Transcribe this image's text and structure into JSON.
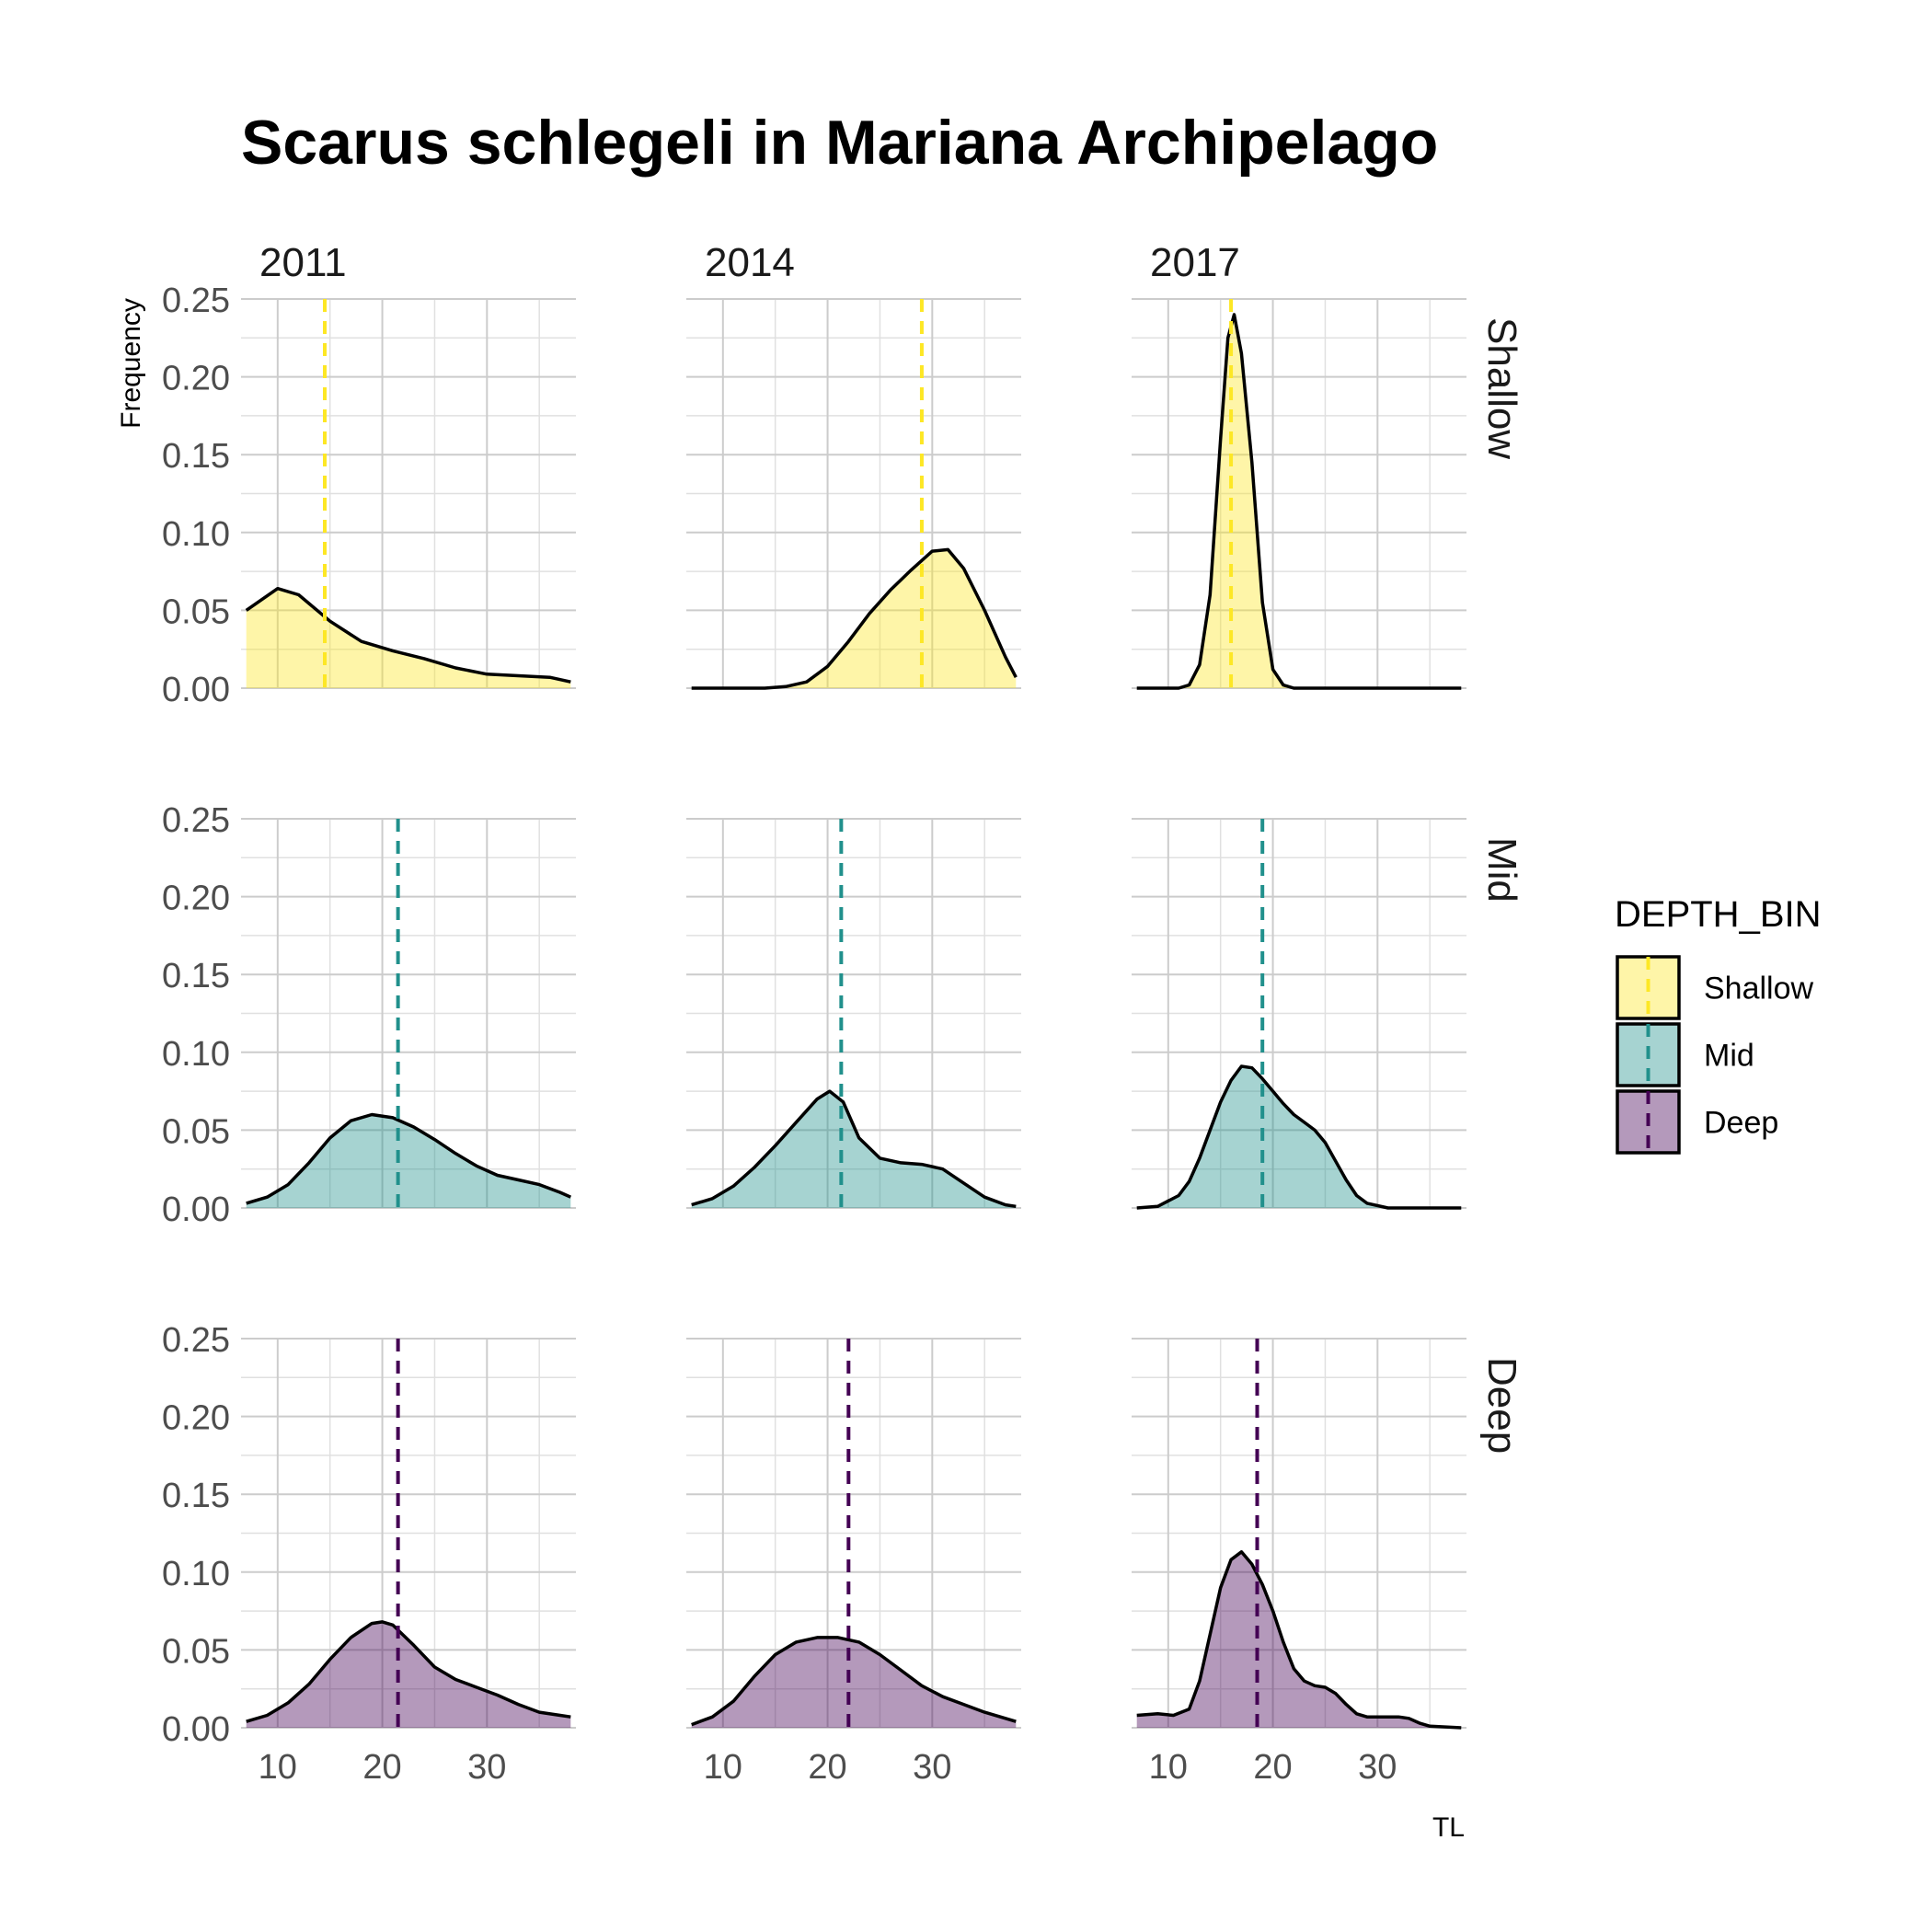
{
  "chart_data": {
    "type": "area",
    "title": "Scarus schlegeli in Mariana Archipelago",
    "xlabel": "TL",
    "ylabel": "Frequency",
    "xlim": [
      6.5,
      38.5
    ],
    "ylim": [
      0,
      0.25
    ],
    "xticks": [
      "10",
      "20",
      "30"
    ],
    "yticks": [
      "0.00",
      "0.05",
      "0.10",
      "0.15",
      "0.20",
      "0.25"
    ],
    "grid": true,
    "columns": [
      "2011",
      "2014",
      "2017"
    ],
    "rows": [
      "Shallow",
      "Mid",
      "Deep"
    ],
    "colors": {
      "Shallow": "#fde725",
      "Mid": "#21908c",
      "Deep": "#440154"
    },
    "fill_opacity": 0.4,
    "legend": {
      "title": "DEPTH_BIN",
      "position": "right",
      "entries": [
        "Shallow",
        "Mid",
        "Deep"
      ]
    },
    "panels": [
      {
        "row": "Shallow",
        "col": "2011",
        "mean": 14.5,
        "x": [
          7.0,
          10.0,
          12.0,
          15.0,
          18.0,
          21.0,
          24.0,
          27.0,
          30.0,
          33.0,
          36.0,
          38.0
        ],
        "y": [
          0.05,
          0.064,
          0.06,
          0.043,
          0.03,
          0.024,
          0.019,
          0.013,
          0.009,
          0.008,
          0.007,
          0.004
        ]
      },
      {
        "row": "Shallow",
        "col": "2014",
        "mean": 29.0,
        "x": [
          7.0,
          12.0,
          14.0,
          16.0,
          18.0,
          20.0,
          22.0,
          24.0,
          26.0,
          28.0,
          30.0,
          31.5,
          33.0,
          35.0,
          37.0,
          38.0
        ],
        "y": [
          0.0,
          0.0,
          0.0,
          0.001,
          0.004,
          0.014,
          0.03,
          0.048,
          0.063,
          0.076,
          0.088,
          0.089,
          0.077,
          0.05,
          0.02,
          0.007
        ]
      },
      {
        "row": "Shallow",
        "col": "2017",
        "mean": 16.0,
        "x": [
          7.0,
          11.0,
          12.0,
          13.0,
          14.0,
          15.0,
          15.7,
          16.3,
          17.0,
          18.0,
          19.0,
          20.0,
          21.0,
          22.0,
          26.0,
          38.0
        ],
        "y": [
          0.0,
          0.0,
          0.002,
          0.015,
          0.06,
          0.16,
          0.225,
          0.24,
          0.215,
          0.145,
          0.055,
          0.012,
          0.002,
          0.0,
          0.0,
          0.0
        ]
      },
      {
        "row": "Mid",
        "col": "2011",
        "mean": 21.5,
        "x": [
          7.0,
          9.0,
          11.0,
          13.0,
          15.0,
          17.0,
          19.0,
          21.0,
          23.0,
          25.0,
          27.0,
          29.0,
          31.0,
          33.0,
          35.0,
          37.0,
          38.0
        ],
        "y": [
          0.003,
          0.007,
          0.015,
          0.029,
          0.045,
          0.056,
          0.06,
          0.058,
          0.052,
          0.044,
          0.035,
          0.027,
          0.021,
          0.018,
          0.015,
          0.01,
          0.007
        ]
      },
      {
        "row": "Mid",
        "col": "2014",
        "mean": 21.3,
        "x": [
          7.0,
          9.0,
          11.0,
          13.0,
          15.0,
          17.0,
          19.0,
          20.2,
          21.5,
          23.0,
          25.0,
          27.0,
          29.0,
          31.0,
          33.0,
          35.0,
          37.0,
          38.0
        ],
        "y": [
          0.002,
          0.006,
          0.014,
          0.026,
          0.04,
          0.055,
          0.07,
          0.075,
          0.068,
          0.045,
          0.032,
          0.029,
          0.028,
          0.025,
          0.016,
          0.007,
          0.002,
          0.001
        ]
      },
      {
        "row": "Mid",
        "col": "2017",
        "mean": 19.0,
        "x": [
          7.0,
          9.0,
          11.0,
          12.0,
          13.0,
          14.0,
          15.0,
          16.0,
          17.0,
          18.0,
          19.0,
          20.0,
          21.0,
          22.0,
          23.0,
          24.0,
          25.0,
          26.0,
          27.0,
          28.0,
          29.0,
          31.0,
          38.0
        ],
        "y": [
          0.0,
          0.001,
          0.008,
          0.017,
          0.032,
          0.05,
          0.068,
          0.082,
          0.091,
          0.09,
          0.083,
          0.075,
          0.067,
          0.06,
          0.055,
          0.05,
          0.042,
          0.03,
          0.018,
          0.008,
          0.003,
          0.0,
          0.0
        ]
      },
      {
        "row": "Deep",
        "col": "2011",
        "mean": 21.5,
        "x": [
          7.0,
          9.0,
          11.0,
          13.0,
          15.0,
          17.0,
          19.0,
          20.0,
          21.0,
          23.0,
          25.0,
          27.0,
          29.0,
          31.0,
          33.0,
          35.0,
          37.0,
          38.0
        ],
        "y": [
          0.004,
          0.008,
          0.016,
          0.028,
          0.044,
          0.058,
          0.067,
          0.068,
          0.066,
          0.053,
          0.039,
          0.031,
          0.026,
          0.021,
          0.015,
          0.01,
          0.008,
          0.007
        ]
      },
      {
        "row": "Deep",
        "col": "2014",
        "mean": 22.0,
        "x": [
          7.0,
          9.0,
          11.0,
          13.0,
          15.0,
          17.0,
          19.0,
          21.0,
          23.0,
          25.0,
          27.0,
          29.0,
          31.0,
          33.0,
          35.0,
          37.0,
          38.0
        ],
        "y": [
          0.002,
          0.007,
          0.017,
          0.033,
          0.047,
          0.055,
          0.058,
          0.058,
          0.055,
          0.047,
          0.037,
          0.027,
          0.02,
          0.015,
          0.01,
          0.006,
          0.004
        ]
      },
      {
        "row": "Deep",
        "col": "2017",
        "mean": 18.5,
        "x": [
          7.0,
          9.0,
          10.5,
          12.0,
          13.0,
          14.0,
          15.0,
          16.0,
          17.0,
          18.0,
          19.0,
          20.0,
          21.0,
          22.0,
          23.0,
          24.0,
          25.0,
          26.0,
          27.0,
          28.0,
          29.0,
          30.0,
          31.0,
          32.0,
          33.0,
          34.0,
          35.0,
          38.0
        ],
        "y": [
          0.008,
          0.009,
          0.008,
          0.012,
          0.03,
          0.06,
          0.09,
          0.108,
          0.113,
          0.105,
          0.092,
          0.075,
          0.055,
          0.038,
          0.03,
          0.027,
          0.026,
          0.022,
          0.015,
          0.009,
          0.007,
          0.007,
          0.007,
          0.007,
          0.006,
          0.003,
          0.001,
          0.0
        ]
      }
    ]
  }
}
